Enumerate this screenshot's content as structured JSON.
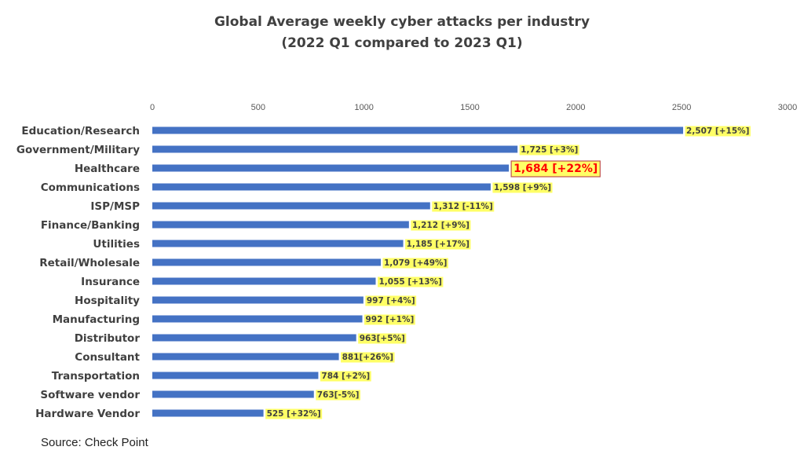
{
  "chart_data": {
    "type": "bar",
    "orientation": "horizontal",
    "title": "Global Average weekly cyber attacks per industry",
    "subtitle": "(2022 Q1 compared to 2023 Q1)",
    "source": "Source: Check Point",
    "xlim": [
      0,
      3000
    ],
    "x_ticks": [
      "0",
      "500",
      "1000",
      "1500",
      "2000",
      "2500",
      "3000"
    ],
    "x_tick_values": [
      0,
      500,
      1000,
      1500,
      2000,
      2500,
      3000
    ],
    "x_axis_position": "top",
    "grid": false,
    "bar_color": "#4472C4",
    "label_highlight_color": "#FFFF66",
    "highlight_label_color": "#FF0000",
    "categories": [
      "Education/Research",
      "Government/Military",
      "Healthcare",
      "Communications",
      "ISP/MSP",
      "Finance/Banking",
      "Utilities",
      "Retail/Wholesale",
      "Insurance",
      "Hospitality",
      "Manufacturing",
      "Distributor",
      "Consultant",
      "Transportation",
      "Software vendor",
      "Hardware Vendor"
    ],
    "values": [
      2507,
      1725,
      1684,
      1598,
      1312,
      1212,
      1185,
      1079,
      1055,
      997,
      992,
      963,
      881,
      784,
      763,
      525
    ],
    "data_labels": [
      "2,507 [+15%]",
      "1,725 [+3%]",
      "1,684 [+22%]",
      "1,598 [+9%]",
      "1,312 [-11%]",
      "1,212 [+9%]",
      "1,185 [+17%]",
      "1,079 [+49%]",
      "1,055 [+13%]",
      "997 [+4%]",
      "992 [+1%]",
      "963[+5%]",
      "881[+26%]",
      "784 [+2%]",
      "763[-5%]",
      "525 [+32%]"
    ],
    "highlighted_category": "Healthcare"
  }
}
